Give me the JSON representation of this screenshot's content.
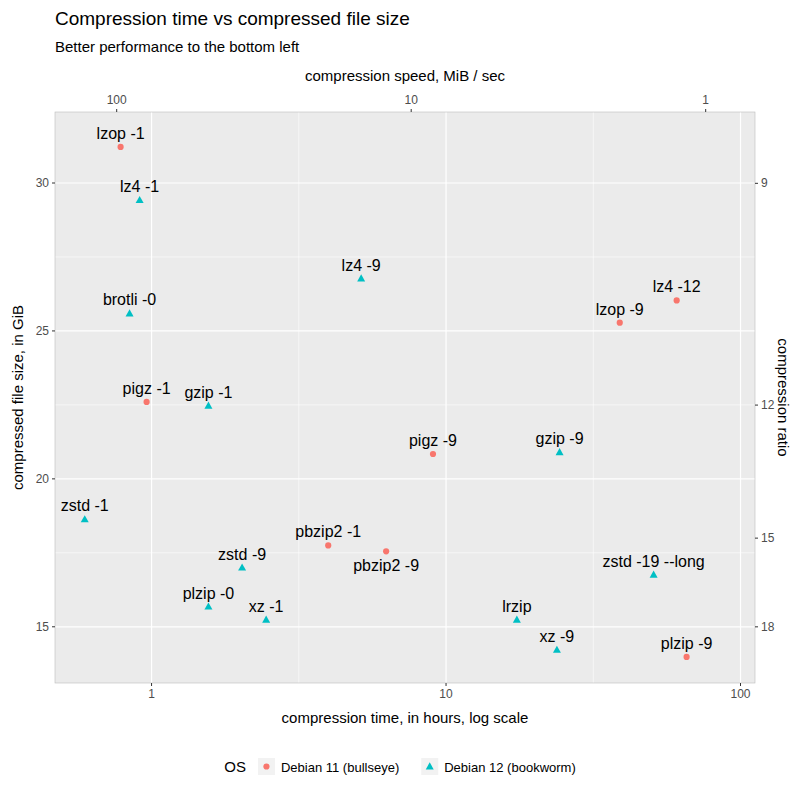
{
  "chart_data": {
    "type": "scatter",
    "title": "Compression time vs compressed file size",
    "subtitle": "Better performance to the bottom left",
    "x_label": "compression time, in hours, log scale",
    "y_label": "compressed file size, in GiB",
    "x2_label": "compression speed, MiB / sec",
    "y2_label": "compression ratio",
    "legend_title": "OS",
    "legend": "bottom",
    "log": "x",
    "grid": true,
    "xlim": [
      0.47,
      112
    ],
    "xticks": [
      1,
      10,
      100
    ],
    "x2lim": [
      162,
      0.68
    ],
    "x2ticks": [
      100,
      10,
      1
    ],
    "ylim": [
      13.1,
      32.4
    ],
    "yticks": [
      15,
      20,
      25,
      30
    ],
    "y2lim": [
      20.61,
      8.33
    ],
    "y2ticks": [
      9,
      12,
      15,
      18
    ],
    "series": [
      {
        "name": "Debian 11 (bullseye)",
        "color": "#F8766D",
        "marker": "circle",
        "labels": [
          "lzop -1",
          "lz4 -12",
          "lzop -9",
          "pigz -1",
          "pigz -9",
          "pbzip2 -1",
          "pbzip2 -9",
          "plzip -9"
        ],
        "x": [
          0.785,
          60.7,
          38.9,
          0.962,
          9.03,
          3.98,
          6.26,
          65.6
        ],
        "values": [
          31.22,
          26.03,
          25.28,
          22.6,
          20.84,
          17.75,
          17.55,
          13.98
        ]
      },
      {
        "name": "Debian 12 (bookworm)",
        "color": "#00BFC4",
        "marker": "triangle",
        "labels": [
          "lz4 -1",
          "brotli -0",
          "lz4 -9",
          "gzip -1",
          "gzip -9",
          "zstd -1",
          "zstd -9",
          "zstd -19 --long",
          "plzip -0",
          "xz -1",
          "lrzip",
          "xz -9"
        ],
        "x": [
          0.911,
          0.842,
          5.15,
          1.56,
          24.3,
          0.593,
          2.03,
          50.7,
          1.56,
          2.45,
          17.4,
          23.8
        ],
        "values": [
          29.42,
          25.59,
          26.77,
          22.47,
          20.9,
          18.63,
          17.0,
          16.76,
          15.68,
          15.24,
          15.24,
          14.22
        ]
      }
    ]
  }
}
